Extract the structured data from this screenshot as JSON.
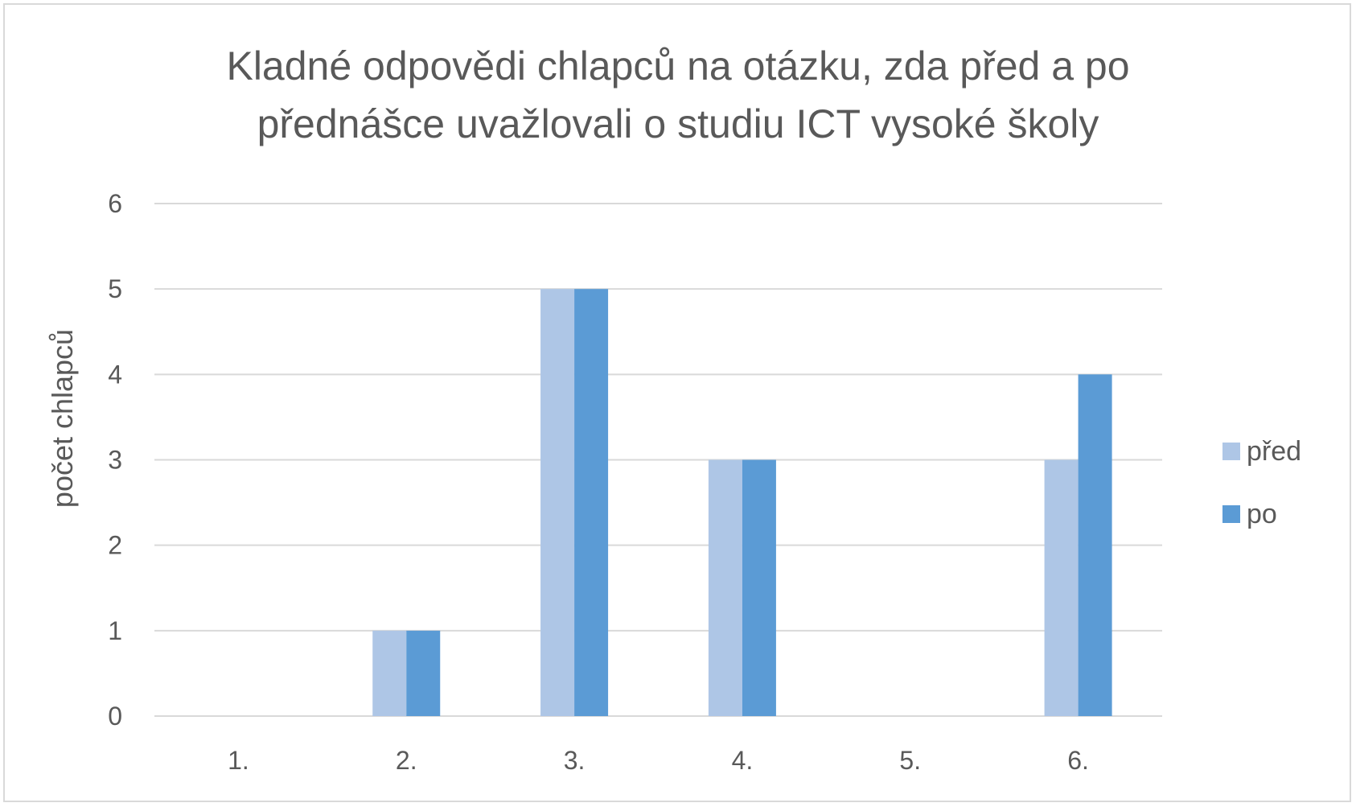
{
  "chart_data": {
    "type": "bar",
    "title_lines": [
      "Kladné odpovědi chlapců na otázku, zda před a po",
      "přednášce uvažlovali o studiu ICT vysoké školy"
    ],
    "xlabel": "",
    "ylabel": "počet chlapců",
    "ylim": [
      0,
      6
    ],
    "yticks": [
      "0",
      "1",
      "2",
      "3",
      "4",
      "5",
      "6"
    ],
    "categories": [
      "1.",
      "2.",
      "3.",
      "4.",
      "5.",
      "6."
    ],
    "series": [
      {
        "name": "před",
        "values": [
          0,
          1,
          5,
          3,
          0,
          3
        ],
        "color": "#aec6e6"
      },
      {
        "name": "po",
        "values": [
          0,
          1,
          5,
          3,
          0,
          4
        ],
        "color": "#5b9bd5"
      }
    ],
    "grid": true,
    "legend_position": "right",
    "gridline_color": "#d9d9d9",
    "text_color": "#595959"
  }
}
